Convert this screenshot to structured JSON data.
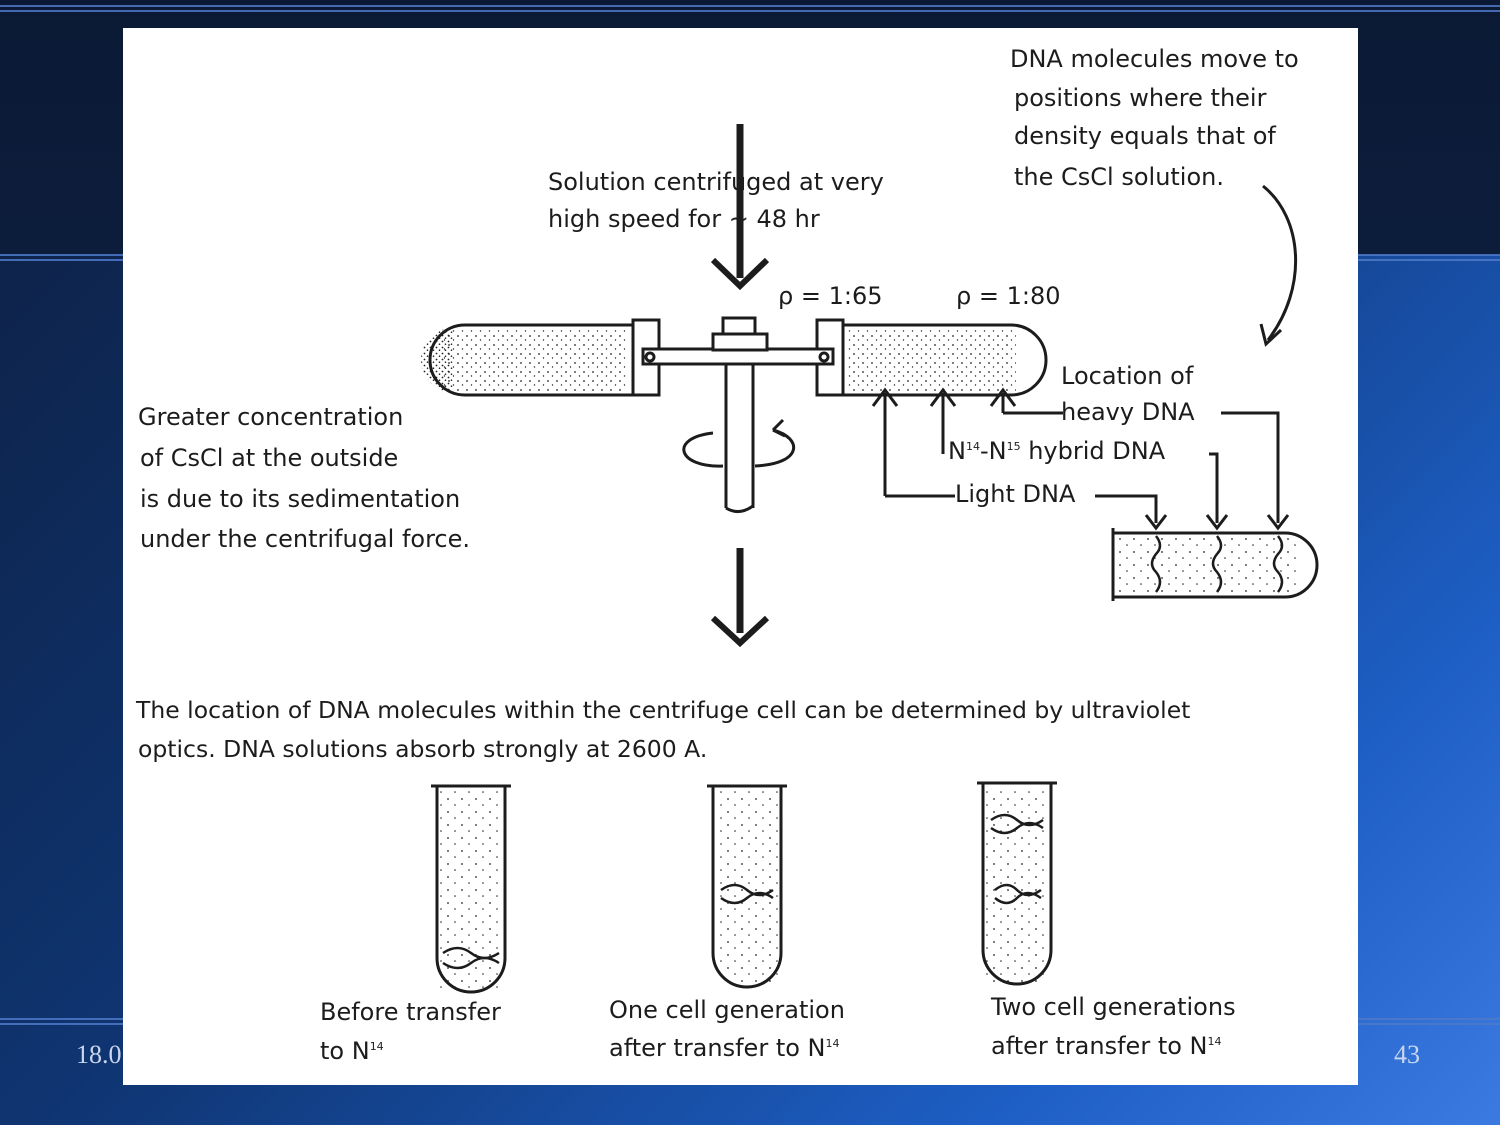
{
  "slide": {
    "footer_date": "18.0",
    "page_number": "43"
  },
  "figure": {
    "centrifuge_note_line1": "Solution centrifuged at very",
    "centrifuge_note_line2": "high speed for ~ 48 hr",
    "density_low": "ρ = 1:65",
    "density_high": "ρ = 1:80",
    "dna_move_line1": "DNA molecules move to",
    "dna_move_line2": "positions where their",
    "dna_move_line3": "density equals that of",
    "dna_move_line4": "the CsCl solution.",
    "csCl_line1": "Greater concentration",
    "csCl_line2": "of CsCl  at the outside",
    "csCl_line3": "is due to its  sedimentation",
    "csCl_line4": "under the  centrifugal force.",
    "location_of": "Location of",
    "heavy_dna": "heavy DNA",
    "hybrid_n": "N",
    "hybrid_sup1": "14",
    "hybrid_dash": "-N",
    "hybrid_sup2": "15",
    "hybrid_rest": " hybrid DNA",
    "light_dna": "Light DNA",
    "uv_line1": "The location of DNA  molecules  within the centrifuge cell can be determined by ultraviolet",
    "uv_line2": "optics.    DNA solutions absorb strongly at 2600 A.",
    "tube1_line1": "Before transfer",
    "tube1_line2": "to N",
    "tube1_sup": "14",
    "tube2_line1": "One cell generation",
    "tube2_line2": "after transfer to N",
    "tube2_sup": "14",
    "tube3_line1": "Two cell generations",
    "tube3_line2": "after transfer to N",
    "tube3_sup": "14"
  }
}
